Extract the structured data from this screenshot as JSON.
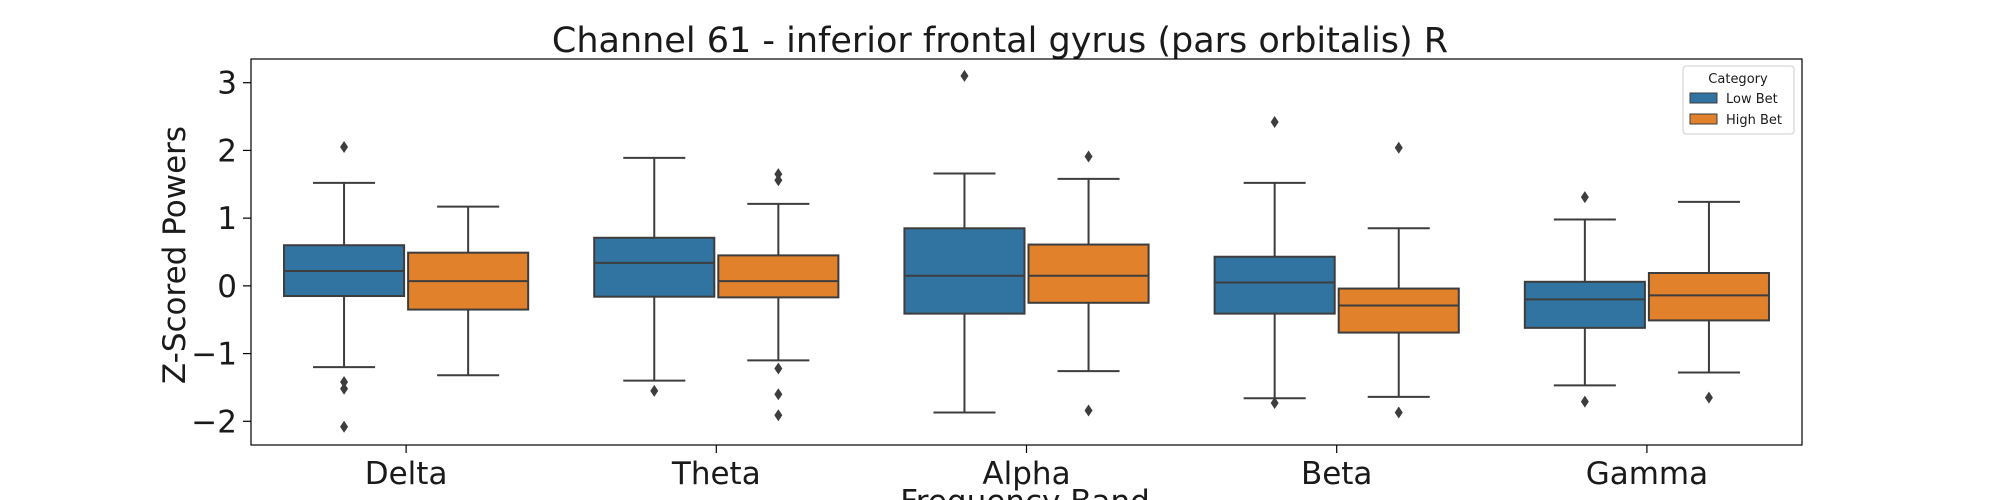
{
  "chart_data": {
    "type": "box",
    "title": "Channel 61 - inferior frontal gyrus (pars orbitalis) R",
    "xlabel": "Frequency Band",
    "ylabel": "Z-Scored Powers",
    "ylim": [
      -2.35,
      3.35
    ],
    "yticks": [
      3,
      2,
      1,
      0,
      -1,
      -2
    ],
    "ytick_labels": [
      "3",
      "2",
      "1",
      "0",
      "−1",
      "−2"
    ],
    "grid": false,
    "categories": [
      "Delta",
      "Theta",
      "Alpha",
      "Beta",
      "Gamma"
    ],
    "legend": {
      "title": "Category",
      "position": "top-right",
      "entries": [
        "Low Bet",
        "High Bet"
      ]
    },
    "colors": {
      "Low Bet": "#3274a1",
      "High Bet": "#e1812c",
      "line": "#3d3d3d"
    },
    "series": [
      {
        "name": "Low Bet",
        "boxes": [
          {
            "whislo": -1.2,
            "q1": -0.15,
            "med": 0.22,
            "q3": 0.6,
            "whishi": 1.52,
            "fliers": [
              2.05,
              -1.42,
              -1.52,
              -2.08
            ]
          },
          {
            "whislo": -1.4,
            "q1": -0.16,
            "med": 0.34,
            "q3": 0.71,
            "whishi": 1.89,
            "fliers": [
              -1.55
            ]
          },
          {
            "whislo": -1.87,
            "q1": -0.41,
            "med": 0.15,
            "q3": 0.85,
            "whishi": 1.66,
            "fliers": [
              3.1
            ]
          },
          {
            "whislo": -1.66,
            "q1": -0.41,
            "med": 0.05,
            "q3": 0.43,
            "whishi": 1.52,
            "fliers": [
              2.42,
              -1.73
            ]
          },
          {
            "whislo": -1.47,
            "q1": -0.62,
            "med": -0.2,
            "q3": 0.06,
            "whishi": 0.98,
            "fliers": [
              1.31,
              -1.71
            ]
          }
        ]
      },
      {
        "name": "High Bet",
        "boxes": [
          {
            "whislo": -1.32,
            "q1": -0.35,
            "med": 0.07,
            "q3": 0.49,
            "whishi": 1.17,
            "fliers": []
          },
          {
            "whislo": -1.1,
            "q1": -0.17,
            "med": 0.07,
            "q3": 0.45,
            "whishi": 1.21,
            "fliers": [
              1.65,
              1.56,
              -1.22,
              -1.6,
              -1.91
            ]
          },
          {
            "whislo": -1.26,
            "q1": -0.25,
            "med": 0.15,
            "q3": 0.61,
            "whishi": 1.58,
            "fliers": [
              1.91,
              -1.84
            ]
          },
          {
            "whislo": -1.64,
            "q1": -0.69,
            "med": -0.29,
            "q3": -0.04,
            "whishi": 0.85,
            "fliers": [
              2.04,
              -1.87
            ]
          },
          {
            "whislo": -1.28,
            "q1": -0.51,
            "med": -0.14,
            "q3": 0.19,
            "whishi": 1.24,
            "fliers": [
              -1.65
            ]
          }
        ]
      }
    ]
  }
}
